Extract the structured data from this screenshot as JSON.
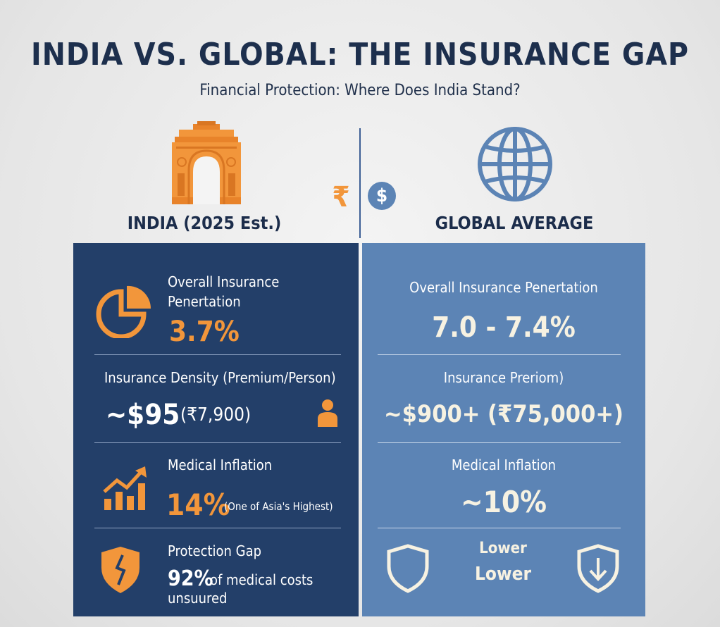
{
  "header": {
    "title": "INDIA VS. GLOBAL: THE INSURANCE GAP",
    "subtitle": "Financial Protection: Where Does India Stand?"
  },
  "columns": {
    "india_label": "INDIA (2025 Est.)",
    "global_label": "GLOBAL AVERAGE",
    "rupee_symbol": "₹",
    "dollar_symbol": "$"
  },
  "india": {
    "penetration_label": "Overall Insurance Penertation",
    "penetration_value": "3.7%",
    "density_label": "Insurance Density (Premium/Person)",
    "density_value": "~$95",
    "density_rupee": "(₹7,900)",
    "inflation_label": "Medical Inflation",
    "inflation_value": "14%",
    "inflation_note": "(One of Asia's Highest)",
    "gap_label": "Protection Gap",
    "gap_value": "92%",
    "gap_text_1": "of medical costs",
    "gap_text_2": "unsuured"
  },
  "global": {
    "penetration_label": "Overall Insurance Penertation",
    "penetration_value": "7.0 - 7.4%",
    "premium_label": "Insurance Preriom)",
    "premium_value": "~$900+ (₹75,000+)",
    "inflation_label": "Medical Inflation",
    "inflation_value": "~10%",
    "gap_text_1": "Lower",
    "gap_text_2": "Lower"
  },
  "colors": {
    "navy": "#233f69",
    "steel_blue": "#5c84b5",
    "orange": "#f2963b",
    "cream": "#f7f2e2"
  },
  "icons": [
    "india-gate-icon",
    "globe-icon",
    "rupee-icon",
    "dollar-coin-icon",
    "pie-chart-icon",
    "person-icon",
    "growth-chart-icon",
    "broken-shield-icon",
    "shield-icon",
    "shield-down-arrow-icon"
  ]
}
